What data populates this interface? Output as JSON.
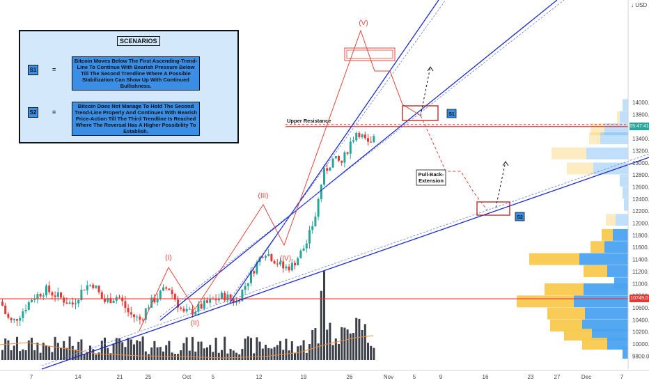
{
  "chart_data": {
    "type": "candlestick",
    "currency_label": "USD",
    "y_ticks": [
      9800,
      10000,
      10200,
      10400,
      10600,
      10800,
      11000,
      11200,
      11400,
      11600,
      11800,
      12000,
      12200,
      12400,
      12600,
      12800,
      13000,
      13200,
      13400,
      13600,
      13800,
      14000
    ],
    "x_ticks": [
      "7",
      "14",
      "21",
      "25",
      "Oct",
      "5",
      "12",
      "19",
      "26",
      "Nov",
      "5",
      "9",
      "16",
      "23",
      "27",
      "Dec",
      "7"
    ],
    "price_labels": [
      {
        "text": "05:47:41",
        "value": 13600,
        "color": "#26a69a"
      },
      {
        "text": "10749.0",
        "value": 10749,
        "color": "#e53935"
      }
    ],
    "horizontal_levels": [
      {
        "name": "Upper Resistance",
        "value": 13600,
        "color": "#e53935"
      },
      {
        "name": "",
        "value": 10749,
        "color": "#e53935"
      }
    ],
    "wave_labels": [
      "(I)",
      "(II)",
      "(III)",
      "(IV)",
      "(V)"
    ],
    "annotations": {
      "s1_tag": "S1",
      "s2_tag": "S2",
      "pull_back_line1": "Pull-Back-",
      "pull_back_line2": "Extension",
      "upper_resistance": "Upper Resistance"
    }
  },
  "scenarios": {
    "title": "SCENARIOS",
    "items": [
      {
        "tag": "S1",
        "eq": "=",
        "text": "Bitcoin Moves Below The First Ascending-Trend-Line To Continue With Bearish Pressure Below Till The Second Trendline Where A Possible Stabilization Can Show Up With Continued Bullishness."
      },
      {
        "tag": "S2",
        "eq": "=",
        "text": "Bitcoin Does Not Manage To Hold The Second Trend-Line Properly And Continues With Bearish Price-Action Till The Third Trendline Is Reached Where The Reversal Has A Higher Possibility To Establish."
      }
    ]
  },
  "colors": {
    "bull": "#26a69a",
    "bear": "#e53935",
    "trend": "#1a2bc9",
    "wave": "#e0453a",
    "volume": "#3c3f48",
    "vp_up": "#4aa3f0",
    "vp_down": "#f8c94e"
  }
}
